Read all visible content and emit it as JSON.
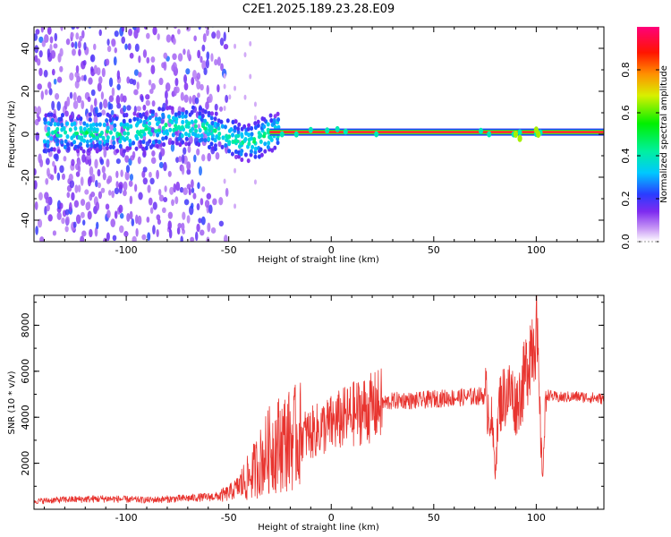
{
  "title": "C2E1.2025.189.23.28.E09",
  "chart_data": [
    {
      "type": "heatmap",
      "xlabel": "Height of straight line (km)",
      "ylabel": "Frequency (Hz)",
      "xlim": [
        -145,
        133
      ],
      "ylim": [
        -50,
        50
      ],
      "xticks": [
        "-100",
        "-50",
        "0",
        "50",
        "100"
      ],
      "yticks": [
        "40",
        "20",
        "0",
        "-20",
        "-40"
      ],
      "colorbar": {
        "label": "Normalized spectral amplitude",
        "range": [
          0,
          1
        ],
        "ticks": [
          "0.0",
          "0.2",
          "0.4",
          "0.6",
          "0.8"
        ]
      },
      "trace": {
        "description_points_x": [
          -145,
          -120,
          -100,
          -80,
          -65,
          -55,
          -45,
          -40,
          -35,
          -30,
          -25,
          -20,
          -10,
          0,
          50,
          100,
          133
        ],
        "description_points_y": [
          0,
          0,
          0,
          3,
          3,
          0,
          -4,
          -5,
          -2,
          0,
          1,
          1,
          1,
          1,
          1,
          1,
          1
        ]
      }
    },
    {
      "type": "line",
      "xlabel": "Height of straight line (km)",
      "ylabel": "SNR (10 * v/v)",
      "xlim": [
        -145,
        133
      ],
      "ylim": [
        0,
        9300
      ],
      "xticks": [
        "-100",
        "-50",
        "0",
        "50",
        "100"
      ],
      "yticks": [
        "2000",
        "4000",
        "6000",
        "8000"
      ],
      "series": [
        {
          "color": "#e8342f",
          "x": [
            -145,
            -130,
            -110,
            -90,
            -70,
            -55,
            -50,
            -45,
            -40,
            -35,
            -30,
            -25,
            -20,
            -15,
            -10,
            -5,
            0,
            5,
            10,
            15,
            20,
            25,
            30,
            35,
            40,
            50,
            60,
            70,
            75,
            78,
            80,
            82,
            85,
            88,
            90,
            93,
            95,
            97,
            100,
            102,
            103,
            105,
            110,
            120,
            133
          ],
          "y": [
            350,
            420,
            460,
            400,
            480,
            560,
            700,
            1000,
            1400,
            2000,
            2600,
            2900,
            3000,
            3200,
            3300,
            3500,
            3700,
            3900,
            4100,
            4300,
            4400,
            4600,
            4700,
            4750,
            4700,
            4800,
            4850,
            4900,
            4950,
            4000,
            1800,
            4600,
            5000,
            5100,
            4500,
            5200,
            6000,
            7000,
            8000,
            3500,
            1500,
            5000,
            4850,
            4900,
            4800
          ]
        }
      ]
    }
  ]
}
